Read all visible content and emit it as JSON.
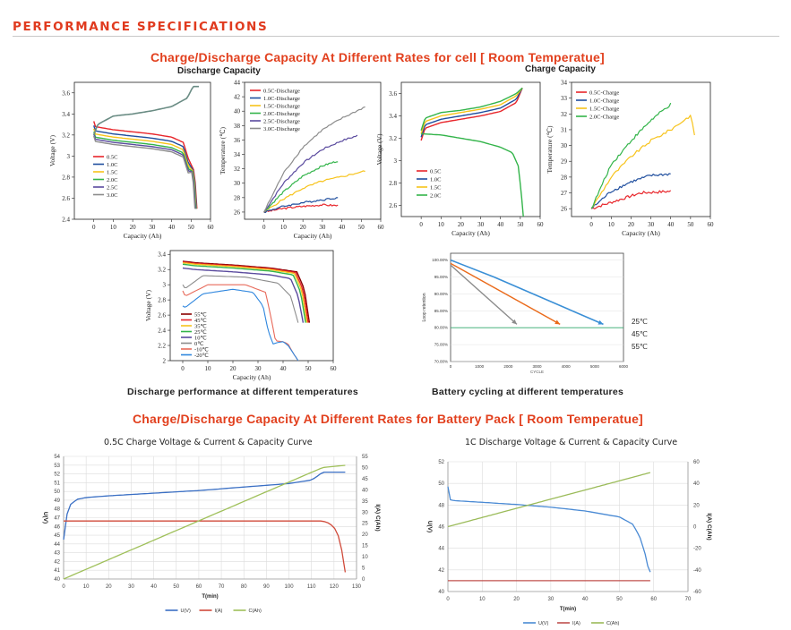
{
  "header": {
    "title": "PERFORMANCE SPECIFICATIONS"
  },
  "cell_section": {
    "title": "Charge/Discharge Capacity At Different Rates for cell [ Room Temperatue]",
    "discharge_label": "Discharge Capacity",
    "charge_label": "Charge Capacity",
    "temp_caption": "Discharge performance at different temperatures",
    "cycle_caption": "Battery cycling at different temperatures"
  },
  "pack_section": {
    "title": "Charge/Discharge Capacity At Different Rates for Battery Pack [ Room Temperatue]",
    "charge_title": "0.5C Charge Voltage & Current & Capacity Curve",
    "discharge_title": "1C Discharge Voltage & Current & Capacity Curve"
  },
  "colors": {
    "red": "#e8262b",
    "blue": "#1f4e9e",
    "yellow": "#f7c31b",
    "green": "#33b44a",
    "purple": "#5a4a9e",
    "gray": "#8c8c8c"
  },
  "chart_data": [
    {
      "id": "cell_discharge_voltage",
      "type": "line",
      "xlabel": "Capacity (Ah)",
      "ylabel": "Voltage (V)",
      "xlim": [
        -10,
        60
      ],
      "ylim": [
        2.4,
        3.7
      ],
      "xticks": [
        0,
        10,
        20,
        30,
        40,
        50,
        60
      ],
      "yticks": [
        2.4,
        2.6,
        2.8,
        3.0,
        3.2,
        3.4,
        3.6
      ],
      "series": [
        {
          "name": "0.5C",
          "color": "#e8262b",
          "end": 53.0,
          "start_v": 3.28
        },
        {
          "name": "1.0C",
          "color": "#1f4e9e",
          "end": 52.8,
          "start_v": 3.24
        },
        {
          "name": "1.5C",
          "color": "#f7c31b",
          "end": 52.6,
          "start_v": 3.21
        },
        {
          "name": "2.0C",
          "color": "#33b44a",
          "end": 52.4,
          "start_v": 3.18
        },
        {
          "name": "2.5C",
          "color": "#5a4a9e",
          "end": 52.2,
          "start_v": 3.16
        },
        {
          "name": "3.0C",
          "color": "#8c8c8c",
          "end": 52.0,
          "start_v": 3.14
        }
      ],
      "charge_curve": [
        [
          0,
          3.2
        ],
        [
          2,
          3.3
        ],
        [
          10,
          3.38
        ],
        [
          20,
          3.4
        ],
        [
          30,
          3.43
        ],
        [
          40,
          3.47
        ],
        [
          48,
          3.55
        ],
        [
          51,
          3.66
        ],
        [
          54,
          3.66
        ]
      ]
    },
    {
      "id": "cell_discharge_temperature",
      "type": "line",
      "xlabel": "Capacity (Ah)",
      "ylabel": "Temperature (℃)",
      "xlim": [
        -10,
        60
      ],
      "ylim": [
        25,
        44
      ],
      "xticks": [
        0,
        10,
        20,
        30,
        40,
        50,
        60
      ],
      "yticks": [
        26,
        28,
        30,
        32,
        34,
        36,
        38,
        40,
        42,
        44
      ],
      "series": [
        {
          "name": "0.5C-Discharge",
          "color": "#e8262b",
          "points": [
            [
              0,
              26
            ],
            [
              10,
              26.5
            ],
            [
              20,
              26.8
            ],
            [
              30,
              27.0
            ],
            [
              38,
              26.9
            ]
          ]
        },
        {
          "name": "1.0C-Discharge",
          "color": "#1f4e9e",
          "points": [
            [
              0,
              26
            ],
            [
              10,
              26.8
            ],
            [
              20,
              27.3
            ],
            [
              30,
              27.7
            ],
            [
              38,
              28.0
            ]
          ]
        },
        {
          "name": "1.5C-Discharge",
          "color": "#f7c31b",
          "points": [
            [
              0,
              26
            ],
            [
              10,
              27.8
            ],
            [
              20,
              29.3
            ],
            [
              30,
              30.3
            ],
            [
              40,
              30.9
            ],
            [
              52,
              31.7
            ]
          ]
        },
        {
          "name": "2.0C-Discharge",
          "color": "#33b44a",
          "points": [
            [
              0,
              26
            ],
            [
              10,
              28.8
            ],
            [
              20,
              31.0
            ],
            [
              30,
              32.4
            ],
            [
              38,
              33.1
            ]
          ]
        },
        {
          "name": "2.5C-Discharge",
          "color": "#5a4a9e",
          "points": [
            [
              0,
              26
            ],
            [
              10,
              30.0
            ],
            [
              20,
              32.8
            ],
            [
              30,
              34.7
            ],
            [
              40,
              35.9
            ],
            [
              48,
              36.6
            ]
          ]
        },
        {
          "name": "3.0C-Discharge",
          "color": "#8c8c8c",
          "points": [
            [
              0,
              26
            ],
            [
              10,
              31.4
            ],
            [
              20,
              35.0
            ],
            [
              30,
              37.4
            ],
            [
              40,
              39.0
            ],
            [
              52,
              40.6
            ]
          ]
        }
      ]
    },
    {
      "id": "cell_charge_voltage",
      "type": "line",
      "xlabel": "Capacity (Ah)",
      "ylabel": "Voltage (V)",
      "xlim": [
        -10,
        60
      ],
      "ylim": [
        2.5,
        3.7
      ],
      "xticks": [
        0,
        10,
        20,
        30,
        40,
        50,
        60
      ],
      "yticks": [
        2.6,
        2.8,
        3.0,
        3.2,
        3.4,
        3.6
      ],
      "series": [
        {
          "name": "0.5C",
          "color": "#e8262b",
          "points": [
            [
              0,
              3.18
            ],
            [
              2,
              3.29
            ],
            [
              10,
              3.34
            ],
            [
              20,
              3.37
            ],
            [
              30,
              3.4
            ],
            [
              40,
              3.44
            ],
            [
              48,
              3.52
            ],
            [
              51,
              3.65
            ]
          ]
        },
        {
          "name": "1.0C",
          "color": "#1f4e9e",
          "points": [
            [
              0,
              3.21
            ],
            [
              2,
              3.32
            ],
            [
              10,
              3.37
            ],
            [
              20,
              3.4
            ],
            [
              30,
              3.43
            ],
            [
              40,
              3.47
            ],
            [
              48,
              3.55
            ],
            [
              51,
              3.65
            ]
          ]
        },
        {
          "name": "1.5C",
          "color": "#f7c31b",
          "points": [
            [
              0,
              3.24
            ],
            [
              2,
              3.35
            ],
            [
              10,
              3.4
            ],
            [
              20,
              3.43
            ],
            [
              30,
              3.46
            ],
            [
              40,
              3.5
            ],
            [
              48,
              3.58
            ],
            [
              51,
              3.65
            ]
          ]
        },
        {
          "name": "2.0C",
          "color": "#33b44a",
          "points": [
            [
              0,
              3.27
            ],
            [
              2,
              3.38
            ],
            [
              10,
              3.43
            ],
            [
              20,
              3.45
            ],
            [
              30,
              3.48
            ],
            [
              40,
              3.53
            ],
            [
              48,
              3.6
            ],
            [
              51,
              3.65
            ]
          ]
        }
      ],
      "discharge_curve": [
        [
          0,
          3.24
        ],
        [
          10,
          3.23
        ],
        [
          20,
          3.2
        ],
        [
          30,
          3.17
        ],
        [
          40,
          3.12
        ],
        [
          46,
          3.07
        ],
        [
          49,
          2.95
        ],
        [
          50.5,
          2.7
        ],
        [
          51.5,
          2.5
        ]
      ]
    },
    {
      "id": "cell_charge_temperature",
      "type": "line",
      "xlabel": "Capacity (Ah)",
      "ylabel": "Temperature (℃)",
      "xlim": [
        -10,
        60
      ],
      "ylim": [
        25.5,
        34
      ],
      "xticks": [
        0,
        10,
        20,
        30,
        40,
        50,
        60
      ],
      "yticks": [
        26,
        27,
        28,
        29,
        30,
        31,
        32,
        33,
        34
      ],
      "series": [
        {
          "name": "0.5C-Charge",
          "color": "#e8262b",
          "points": [
            [
              0,
              26
            ],
            [
              10,
              26.4
            ],
            [
              20,
              26.8
            ],
            [
              25,
              27.0
            ],
            [
              40,
              27.1
            ]
          ]
        },
        {
          "name": "1.0C-Charge",
          "color": "#1f4e9e",
          "points": [
            [
              0,
              26
            ],
            [
              10,
              27.1
            ],
            [
              20,
              27.7
            ],
            [
              30,
              28.1
            ],
            [
              40,
              28.2
            ]
          ]
        },
        {
          "name": "1.5C-Charge",
          "color": "#f7c31b",
          "points": [
            [
              0,
              26
            ],
            [
              10,
              28.0
            ],
            [
              20,
              29.3
            ],
            [
              30,
              30.3
            ],
            [
              40,
              31.0
            ],
            [
              50,
              31.9
            ],
            [
              52,
              30.7
            ]
          ]
        },
        {
          "name": "2.0C-Charge",
          "color": "#33b44a",
          "points": [
            [
              0,
              26
            ],
            [
              10,
              28.8
            ],
            [
              20,
              30.3
            ],
            [
              30,
              31.6
            ],
            [
              40,
              32.6
            ]
          ]
        }
      ]
    },
    {
      "id": "cell_temperature_discharge",
      "type": "line",
      "xlabel": "Capacity (Ah)",
      "ylabel": "Voltage (V)",
      "xlim": [
        -5,
        60
      ],
      "ylim": [
        2.0,
        3.45
      ],
      "xticks": [
        0,
        10,
        20,
        30,
        40,
        50,
        60
      ],
      "yticks": [
        2.0,
        2.2,
        2.4,
        2.6,
        2.8,
        3.0,
        3.2,
        3.4
      ],
      "series": [
        {
          "name": "55℃",
          "color": "#8b0000"
        },
        {
          "name": "45℃",
          "color": "#e8262b"
        },
        {
          "name": "35℃",
          "color": "#f7c31b"
        },
        {
          "name": "25℃",
          "color": "#33b44a"
        },
        {
          "name": "10℃",
          "color": "#5a4a9e"
        },
        {
          "name": "0℃",
          "color": "#8c8c8c"
        },
        {
          "name": "-10℃",
          "color": "#e86a5a"
        },
        {
          "name": "-20℃",
          "color": "#2e86de"
        }
      ]
    },
    {
      "id": "cell_cycling",
      "type": "line",
      "xlabel": "CYCLE",
      "ylabel": "Loop retention",
      "xlim": [
        0,
        6000
      ],
      "ylim": [
        0.7,
        1.02
      ],
      "xticks": [
        0,
        1000,
        2000,
        3000,
        4000,
        5000,
        6000
      ],
      "yticks": [
        "70.00%",
        "75.00%",
        "80.00%",
        "85.00%",
        "90.00%",
        "95.00%",
        "100.00%"
      ],
      "series": [
        {
          "name": "25℃",
          "color": "#3a8fd6",
          "points": [
            [
              0,
              1.0
            ],
            [
              1500,
              0.95
            ],
            [
              5300,
              0.81
            ]
          ]
        },
        {
          "name": "45℃",
          "color": "#ea6a1a",
          "points": [
            [
              0,
              0.99
            ],
            [
              3800,
              0.81
            ]
          ]
        },
        {
          "name": "55℃",
          "color": "#8c8c8c",
          "points": [
            [
              0,
              0.985
            ],
            [
              2300,
              0.81
            ]
          ]
        }
      ],
      "reference_line": 0.8
    },
    {
      "id": "pack_charge",
      "type": "line",
      "title": "0.5C Charge Voltage & Current & Capacity Curve",
      "xlabel": "T(min)",
      "ylabel_left": "U(V)",
      "ylabel_right": "I(A) C(Ah)",
      "xlim": [
        0,
        130
      ],
      "ylim_left": [
        40,
        54
      ],
      "ylim_right": [
        0,
        55
      ],
      "xticks": [
        0,
        10,
        20,
        30,
        40,
        50,
        60,
        70,
        80,
        90,
        100,
        110,
        120,
        130
      ],
      "yticks_left": [
        40,
        41,
        42,
        43,
        44,
        45,
        46,
        47,
        48,
        49,
        50,
        51,
        52,
        53,
        54
      ],
      "yticks_right": [
        0,
        5,
        10,
        15,
        20,
        25,
        30,
        35,
        40,
        45,
        50,
        55
      ],
      "series": [
        {
          "name": "U(V)",
          "color": "#3a6fc4",
          "axis": "left",
          "points": [
            [
              0,
              44.5
            ],
            [
              1,
              47
            ],
            [
              3,
              48.5
            ],
            [
              6,
              49.1
            ],
            [
              10,
              49.3
            ],
            [
              20,
              49.5
            ],
            [
              40,
              49.8
            ],
            [
              60,
              50.1
            ],
            [
              80,
              50.5
            ],
            [
              100,
              50.9
            ],
            [
              110,
              51.3
            ],
            [
              113,
              51.8
            ],
            [
              115,
              52.2
            ],
            [
              125,
              52.2
            ]
          ]
        },
        {
          "name": "I(A)",
          "color": "#d04a3a",
          "axis": "right",
          "points": [
            [
              0,
              26
            ],
            [
              115,
              26
            ],
            [
              118,
              25
            ],
            [
              121,
              22
            ],
            [
              123,
              16
            ],
            [
              124,
              9
            ],
            [
              125,
              3
            ]
          ]
        },
        {
          "name": "C(Ah)",
          "color": "#9fc05a",
          "axis": "right",
          "points": [
            [
              0,
              0
            ],
            [
              115,
              50
            ],
            [
              125,
              51
            ]
          ]
        }
      ]
    },
    {
      "id": "pack_discharge",
      "type": "line",
      "title": "1C Discharge Voltage & Current & Capacity Curve",
      "xlabel": "T(min)",
      "ylabel_left": "U(V)",
      "ylabel_right": "I(A) C(Ah)",
      "xlim": [
        0,
        70
      ],
      "ylim_left": [
        40,
        52
      ],
      "ylim_right": [
        -60,
        60
      ],
      "xticks": [
        0,
        10,
        20,
        30,
        40,
        50,
        60,
        70
      ],
      "yticks_left": [
        40,
        42,
        44,
        46,
        48,
        50,
        52
      ],
      "yticks_right": [
        -60,
        -40,
        -20,
        0,
        20,
        40,
        60
      ],
      "series": [
        {
          "name": "U(V)",
          "color": "#4a8ad4",
          "axis": "left",
          "points": [
            [
              0,
              49.7
            ],
            [
              0.5,
              48.5
            ],
            [
              2,
              48.4
            ],
            [
              10,
              48.25
            ],
            [
              20,
              48.05
            ],
            [
              30,
              47.8
            ],
            [
              40,
              47.45
            ],
            [
              50,
              46.9
            ],
            [
              54,
              46.2
            ],
            [
              56,
              45.0
            ],
            [
              57.5,
              43.5
            ],
            [
              58.5,
              42.0
            ],
            [
              59,
              41.8
            ]
          ]
        },
        {
          "name": "I(A)",
          "color": "#c0504d",
          "axis": "right",
          "points": [
            [
              0,
              -50
            ],
            [
              59,
              -50
            ]
          ]
        },
        {
          "name": "C(Ah)",
          "color": "#9bbb59",
          "axis": "right",
          "points": [
            [
              0,
              0
            ],
            [
              59,
              50
            ]
          ]
        }
      ]
    }
  ]
}
